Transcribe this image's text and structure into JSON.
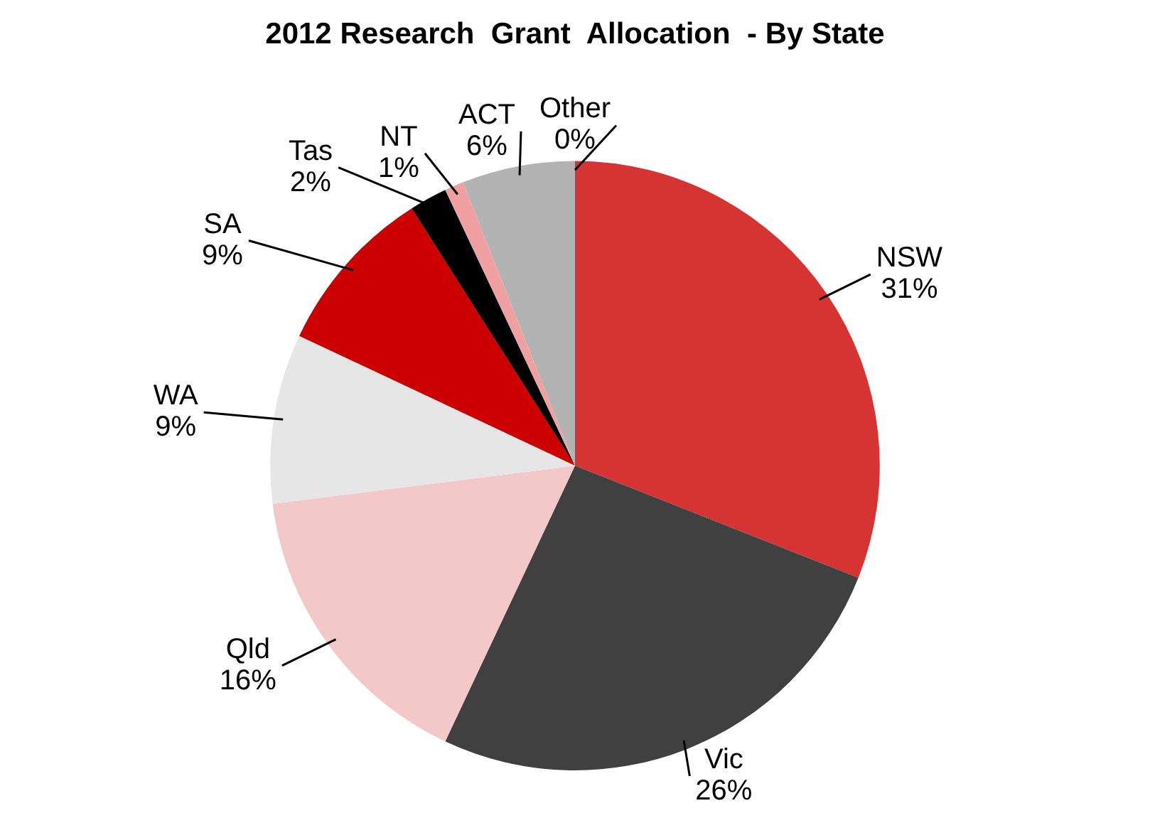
{
  "chart_data": {
    "type": "pie",
    "title": "2012 Research  Grant  Allocation  - By State",
    "categories": [
      "NSW",
      "Vic",
      "Qld",
      "WA",
      "SA",
      "Tas",
      "NT",
      "ACT",
      "Other"
    ],
    "values": [
      31,
      26,
      16,
      9,
      9,
      2,
      1,
      6,
      0
    ],
    "colors": [
      "#d63333",
      "#404040",
      "#f2c8c8",
      "#e6e6e6",
      "#cc0000",
      "#000000",
      "#f0a0a0",
      "#b3b3b3",
      "#e06060"
    ],
    "value_labels": [
      "31%",
      "26%",
      "16%",
      "9%",
      "9%",
      "2%",
      "1%",
      "6%",
      "0%"
    ],
    "legend": false
  }
}
